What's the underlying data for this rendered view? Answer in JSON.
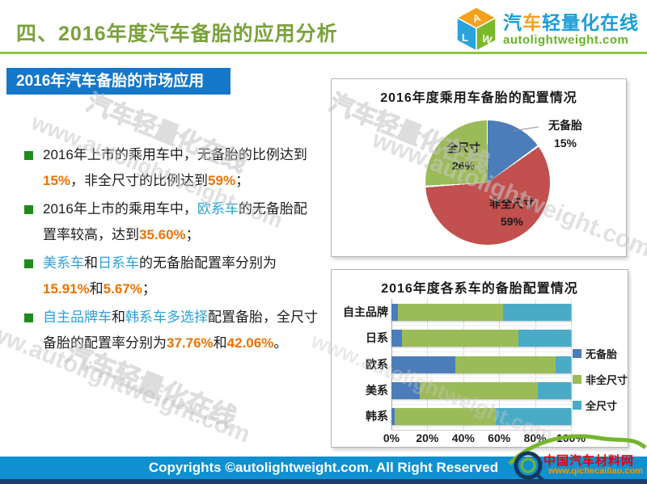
{
  "header": {
    "title": "四、2016年度汽车备胎的应用分析"
  },
  "logo": {
    "cube": [
      "A",
      "L",
      "W"
    ],
    "cn_part1": "汽",
    "cn_part2": "车",
    "cn_part3": "轻量化在线",
    "en": "autolightweight.com"
  },
  "banner": {
    "label": "2016年汽车备胎的市场应用"
  },
  "colors": {
    "orange": "#ee7203",
    "blue": "#2aa0dc",
    "banner_bg": "#1577c8",
    "title_green": "#7aa23c",
    "bullet_green": "#1d8c1d",
    "footer_bg": "#0f90d0"
  },
  "bullets": [
    {
      "segments": [
        {
          "t": "2016年上市的乘用车中，无备胎的比例达",
          "c": "black"
        },
        {
          "t": "到",
          "c": "black"
        },
        {
          "t": "15%",
          "c": "orange"
        },
        {
          "t": "，非全尺寸的比例达到",
          "c": "black"
        },
        {
          "t": "59%",
          "c": "orange"
        },
        {
          "t": "；",
          "c": "black"
        }
      ]
    },
    {
      "segments": [
        {
          "t": "2016年上市的乘用车中，",
          "c": "black"
        },
        {
          "t": "欧系车",
          "c": "blue"
        },
        {
          "t": "的无备胎配置率较高，达到",
          "c": "black"
        },
        {
          "t": "35.60%",
          "c": "orange"
        },
        {
          "t": "；",
          "c": "black"
        }
      ]
    },
    {
      "segments": [
        {
          "t": "美系车",
          "c": "blue"
        },
        {
          "t": "和",
          "c": "black"
        },
        {
          "t": "日系车",
          "c": "blue"
        },
        {
          "t": "的无备胎配置率分别为",
          "c": "black"
        },
        {
          "t": "15.91%",
          "c": "orange"
        },
        {
          "t": "和",
          "c": "black"
        },
        {
          "t": "5.67%",
          "c": "orange"
        },
        {
          "t": "；",
          "c": "black"
        }
      ]
    },
    {
      "segments": [
        {
          "t": "自主品牌车",
          "c": "blue"
        },
        {
          "t": "和",
          "c": "black"
        },
        {
          "t": "韩系车多选择",
          "c": "blue"
        },
        {
          "t": "配置备胎，全尺寸备胎的配置率分别为",
          "c": "black"
        },
        {
          "t": "37.76%",
          "c": "orange"
        },
        {
          "t": "和",
          "c": "black"
        },
        {
          "t": "42.06%",
          "c": "orange"
        },
        {
          "t": "。",
          "c": "black"
        }
      ]
    }
  ],
  "chart_data": [
    {
      "type": "pie",
      "title": "2016年度乘用车备胎的配置情况",
      "labels": [
        "无备胎",
        "非全尺寸",
        "全尺寸"
      ],
      "pct_labels": [
        "15%",
        "59%",
        "26%"
      ],
      "values": [
        15,
        59,
        26
      ],
      "colors": [
        "#4b7dba",
        "#c1504e",
        "#9bbb59"
      ],
      "start_angle_deg": 0,
      "direction": "clockwise",
      "label_layout": "无备胎 outside top-right with leader line; 非全尺寸 and 全尺寸 inside slices"
    },
    {
      "type": "bar",
      "subtype": "stacked-horizontal",
      "title": "2016年度各系车的备胎配置情况",
      "categories": [
        "自主品牌",
        "日系",
        "欧系",
        "美系",
        "韩系"
      ],
      "series": [
        {
          "name": "无备胎",
          "color": "#4b7dba",
          "values": [
            3.5,
            5.67,
            35.6,
            15.91,
            2.0
          ]
        },
        {
          "name": "非全尺寸",
          "color": "#9bbb59",
          "values": [
            58.74,
            65.2,
            55.9,
            65.5,
            55.94
          ]
        },
        {
          "name": "全尺寸",
          "color": "#4aabc7",
          "values": [
            37.76,
            29.13,
            8.5,
            18.59,
            42.06
          ]
        }
      ],
      "xlim": [
        0,
        100
      ],
      "x_ticks": [
        "0%",
        "20%",
        "40%",
        "60%",
        "80%",
        "100%"
      ],
      "grid": true,
      "legend_position": "right"
    }
  ],
  "footer": {
    "text": "Copyrights ©autolightweight.com. All Right Reserved"
  },
  "corner_logo": {
    "cn": "中国汽车材料网",
    "url": "www.qichecailiao.com"
  },
  "watermarks": {
    "en": "www.autolightweight.com",
    "cn": "汽车轻量化在线"
  }
}
